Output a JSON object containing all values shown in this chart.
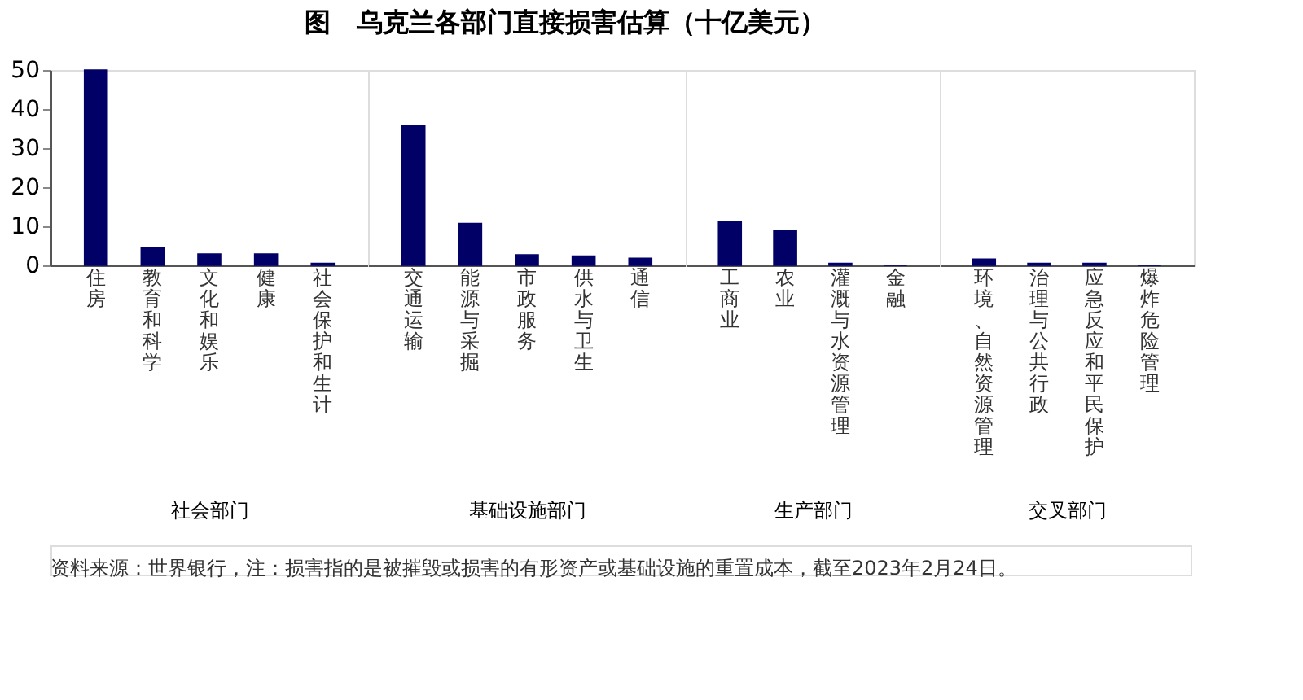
{
  "chart_data": [
    {
      "type": "bar",
      "title": "图　乌克兰各部门直接损害估算（十亿美元）",
      "xlabel": "社会部门",
      "categories": [
        "住房",
        "教育和科学",
        "文化和娱乐",
        "健康",
        "社会保护和生计"
      ],
      "values": [
        50,
        4.5,
        2.9,
        2.9,
        0.5
      ],
      "color": "#000066",
      "ylim": [
        0,
        50
      ],
      "yticks": [
        0,
        10,
        20,
        30,
        40,
        50
      ],
      "grid": false,
      "annotations": [
        "资料来源：世界银行，注：损害指的是被摧毁或损害的有形资产或基础设施的重置成本，截至2023年2月24日。"
      ]
    },
    {
      "type": "bar",
      "xlabel": "基础设施部门",
      "categories": [
        "交通运输",
        "能源与采掘",
        "市政服务",
        "供水与卫生",
        "通信"
      ],
      "values": [
        35.7,
        10.7,
        2.7,
        2.4,
        1.8
      ],
      "color": "#000066",
      "ylim": [
        0,
        50
      ],
      "yticks": [
        0,
        10,
        20,
        30,
        40,
        50
      ],
      "tick_labels": "x",
      "grid": false
    },
    {
      "type": "bar",
      "xlabel": "生产部门",
      "categories": [
        "工商业",
        "农业",
        "灌溉与水资源管理",
        "金融"
      ],
      "values": [
        11.1,
        8.9,
        0.5,
        0
      ],
      "color": "#000066",
      "ylim": [
        0,
        50
      ],
      "yticks": [
        0,
        10,
        20,
        30,
        40,
        50
      ],
      "tick_labels": "x",
      "grid": false
    },
    {
      "type": "bar",
      "xlabel": "交叉部门",
      "categories": [
        "环境、自然资源管理",
        "治理与公共行政",
        "应急反应和平民保护",
        "爆炸危险管理"
      ],
      "values": [
        1.6,
        0.5,
        0.5,
        0
      ],
      "color": "#000066",
      "ylim": [
        0,
        50
      ],
      "yticks": [
        0,
        10,
        20,
        30,
        40,
        50
      ],
      "tick_labels": "x",
      "grid": false
    }
  ]
}
